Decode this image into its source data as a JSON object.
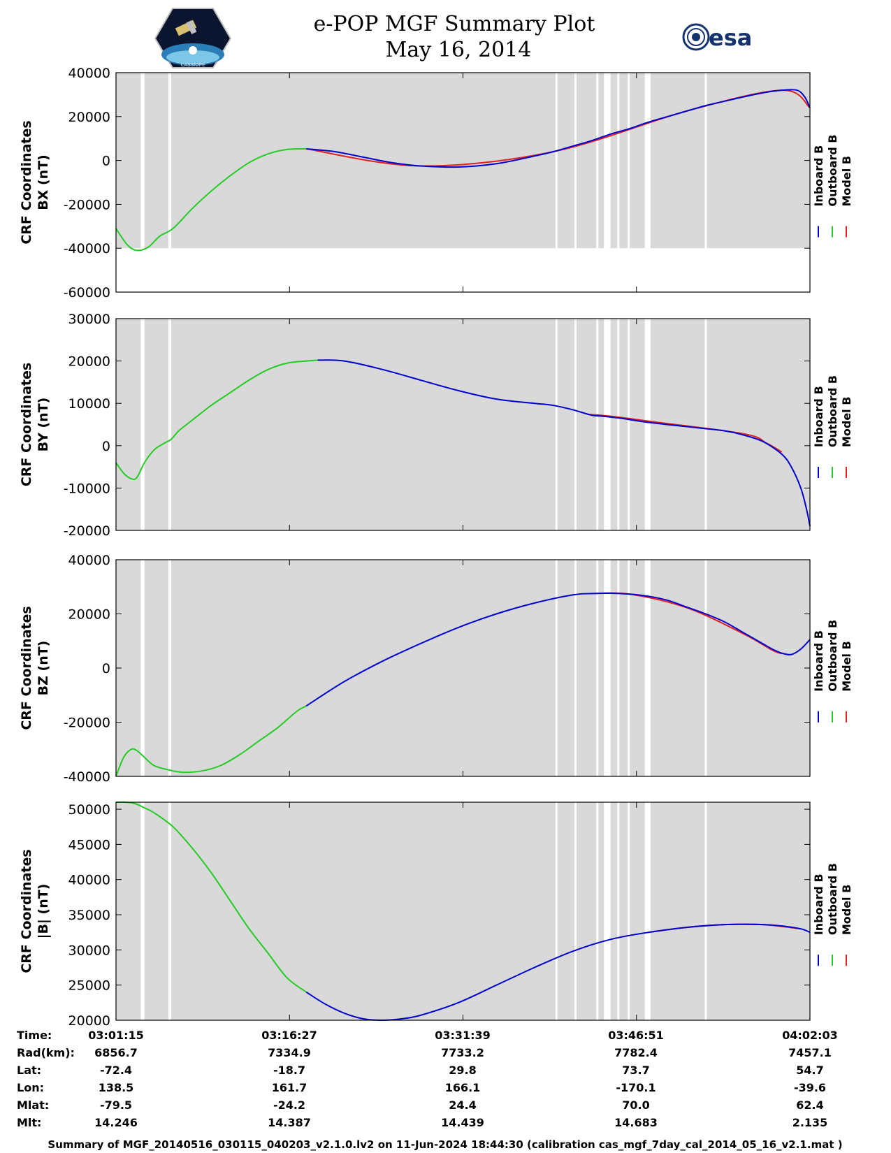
{
  "header": {
    "title": "e-POP MGF Summary Plot",
    "date": "May 16, 2014",
    "left_logo": "cassiope-mission-logo",
    "right_logo": "esa-logo",
    "right_logo_text": "esa"
  },
  "colors": {
    "inboard": "#0000d0",
    "outboard": "#22cc22",
    "model": "#e02020",
    "panel_background": "#d9d9d9",
    "gap": "#ffffff"
  },
  "time_axis": {
    "start_s": 0,
    "end_s": 3648,
    "tick_seconds": [
      0,
      912,
      1824,
      2736,
      3648
    ],
    "gap_intervals_s": [
      [
        130,
        150
      ],
      [
        275,
        290
      ],
      [
        2310,
        2320
      ],
      [
        2410,
        2420
      ],
      [
        2525,
        2530
      ],
      [
        2565,
        2600
      ],
      [
        2635,
        2640
      ],
      [
        2690,
        2700
      ],
      [
        2780,
        2810
      ],
      [
        3095,
        3100
      ]
    ]
  },
  "legend": {
    "labels": [
      "Inboard B",
      "Outboard B",
      "Model B"
    ]
  },
  "chart_data": [
    {
      "type": "line",
      "id": "bx",
      "ylabel_line1": "CRF Coordinates",
      "ylabel_line2": "BX (nT)",
      "ylim": [
        -60000,
        40000
      ],
      "yticks": [
        -60000,
        -40000,
        -20000,
        0,
        20000,
        40000
      ],
      "ytick_labels": [
        "-60000",
        "-40000",
        "-20000",
        "0",
        "20000",
        "40000"
      ],
      "shade_range": [
        -40000,
        40000
      ],
      "series": [
        {
          "name": "Outboard B",
          "x": [
            0,
            60,
            110,
            170,
            230,
            300,
            400,
            500,
            600,
            700,
            800,
            900,
            1000
          ],
          "y": [
            -31000,
            -38500,
            -41000,
            -39500,
            -34500,
            -31000,
            -22000,
            -14000,
            -7000,
            -1000,
            3000,
            5000,
            5300
          ]
        },
        {
          "name": "Inboard B",
          "x": [
            1000,
            1150,
            1300,
            1450,
            1600,
            1800,
            2000,
            2200,
            2300,
            2400,
            2500,
            2600,
            2700,
            2800,
            2900,
            3000,
            3100,
            3200,
            3300,
            3400,
            3500,
            3580,
            3620,
            3648
          ],
          "y": [
            5300,
            4000,
            1500,
            -1000,
            -2500,
            -3000,
            -1500,
            2000,
            4000,
            6500,
            9000,
            12000,
            14500,
            17500,
            20000,
            22500,
            25000,
            27000,
            29000,
            30800,
            32000,
            32000,
            29000,
            24000
          ]
        },
        {
          "name": "Model B",
          "x": [
            1000,
            1600,
            2300,
            3000,
            3500,
            3648
          ],
          "y": [
            5300,
            -2500,
            4000,
            22500,
            32000,
            24000
          ]
        }
      ]
    },
    {
      "type": "line",
      "id": "by",
      "ylabel_line1": "CRF Coordinates",
      "ylabel_line2": "BY (nT)",
      "ylim": [
        -20000,
        30000
      ],
      "yticks": [
        -20000,
        -10000,
        0,
        10000,
        20000,
        30000
      ],
      "ytick_labels": [
        "-20000",
        "-10000",
        "0",
        "10000",
        "20000",
        "30000"
      ],
      "shade_range": [
        -20000,
        30000
      ],
      "series": [
        {
          "name": "Outboard B",
          "x": [
            0,
            40,
            80,
            110,
            150,
            200,
            250,
            290,
            330,
            400,
            500,
            600,
            700,
            800,
            900,
            1000,
            1060
          ],
          "y": [
            -4000,
            -6500,
            -7800,
            -7500,
            -4000,
            -1000,
            500,
            1500,
            3500,
            6000,
            9500,
            12500,
            15500,
            18000,
            19500,
            20000,
            20200
          ]
        },
        {
          "name": "Inboard B",
          "x": [
            1060,
            1200,
            1400,
            1600,
            1800,
            2000,
            2200,
            2300,
            2400,
            2500,
            2550,
            2650,
            2800,
            3000,
            3200,
            3300,
            3400,
            3500,
            3550,
            3600,
            3630,
            3648
          ],
          "y": [
            20200,
            20000,
            18000,
            15500,
            13000,
            11000,
            10000,
            9500,
            8500,
            7200,
            7000,
            6500,
            5500,
            4500,
            3500,
            2500,
            1000,
            -2000,
            -5000,
            -10000,
            -15000,
            -19000
          ]
        },
        {
          "name": "Model B",
          "x": [
            2480,
            2550,
            2650,
            2800,
            3300,
            3420,
            3500
          ],
          "y": [
            7400,
            7200,
            6700,
            5800,
            2800,
            600,
            -1500
          ]
        }
      ]
    },
    {
      "type": "line",
      "id": "bz",
      "ylabel_line1": "CRF Coordinates",
      "ylabel_line2": "BZ (nT)",
      "ylim": [
        -40000,
        40000
      ],
      "yticks": [
        -40000,
        -20000,
        0,
        20000,
        40000
      ],
      "ytick_labels": [
        "-40000",
        "-20000",
        "0",
        "20000",
        "40000"
      ],
      "shade_range": [
        -40000,
        40000
      ],
      "series": [
        {
          "name": "Outboard B",
          "x": [
            0,
            40,
            80,
            110,
            150,
            200,
            270,
            350,
            450,
            550,
            650,
            750,
            850,
            950,
            1000
          ],
          "y": [
            -40000,
            -33000,
            -30000,
            -30500,
            -33000,
            -36000,
            -37500,
            -38500,
            -38000,
            -36000,
            -32000,
            -27000,
            -22000,
            -16000,
            -14000
          ]
        },
        {
          "name": "Inboard B",
          "x": [
            1000,
            1200,
            1400,
            1600,
            1800,
            2000,
            2200,
            2400,
            2500,
            2600,
            2700,
            2800,
            2900,
            3000,
            3100,
            3200,
            3300,
            3400,
            3450,
            3500,
            3550,
            3600,
            3648
          ],
          "y": [
            -14000,
            -5000,
            2500,
            9000,
            15000,
            20000,
            24000,
            27000,
            27500,
            27600,
            27300,
            26500,
            25000,
            22500,
            20000,
            17000,
            13000,
            9000,
            7000,
            5500,
            5000,
            7000,
            10500
          ]
        },
        {
          "name": "Model B",
          "x": [
            2500,
            2700,
            3000,
            3300,
            3450,
            3500
          ],
          "y": [
            27500,
            27300,
            22300,
            12600,
            6600,
            5300
          ]
        }
      ]
    },
    {
      "type": "line",
      "id": "btot",
      "ylabel_line1": "CRF Coordinates",
      "ylabel_line2": "|B| (nT)",
      "ylim": [
        20000,
        51000
      ],
      "yticks": [
        20000,
        25000,
        30000,
        35000,
        40000,
        45000,
        50000
      ],
      "ytick_labels": [
        "20000",
        "25000",
        "30000",
        "35000",
        "40000",
        "45000",
        "50000"
      ],
      "shade_range": [
        20000,
        51000
      ],
      "series": [
        {
          "name": "Outboard B",
          "x": [
            0,
            50,
            100,
            150,
            200,
            300,
            400,
            500,
            600,
            700,
            800,
            900,
            1000
          ],
          "y": [
            51000,
            51000,
            50800,
            50200,
            49500,
            47500,
            44500,
            41000,
            37000,
            33000,
            29500,
            26000,
            24000
          ]
        },
        {
          "name": "Inboard B",
          "x": [
            1000,
            1100,
            1200,
            1300,
            1400,
            1500,
            1600,
            1800,
            2000,
            2200,
            2400,
            2600,
            2800,
            3000,
            3200,
            3400,
            3500,
            3600,
            3648
          ],
          "y": [
            24000,
            22300,
            21000,
            20200,
            20000,
            20200,
            20700,
            22500,
            25000,
            27500,
            29800,
            31500,
            32500,
            33200,
            33600,
            33600,
            33400,
            33000,
            32500
          ]
        },
        {
          "name": "Model B",
          "x": [
            2800,
            3000,
            3200,
            3400,
            3600
          ],
          "y": [
            32500,
            33200,
            33600,
            33600,
            33000
          ]
        }
      ]
    }
  ],
  "ephemeris": {
    "row_labels": [
      "Time:",
      "Rad(km):",
      "Lat:",
      "Lon:",
      "Mlat:",
      "Mlt:"
    ],
    "columns": [
      [
        "03:01:15",
        "6856.7",
        "-72.4",
        "138.5",
        "-79.5",
        "14.246"
      ],
      [
        "03:16:27",
        "7334.9",
        "-18.7",
        "161.7",
        "-24.2",
        "14.387"
      ],
      [
        "03:31:39",
        "7733.2",
        "29.8",
        "166.1",
        "24.4",
        "14.439"
      ],
      [
        "03:46:51",
        "7782.4",
        "73.7",
        "-170.1",
        "70.0",
        "14.683"
      ],
      [
        "04:02:03",
        "7457.1",
        "54.7",
        "-39.6",
        "62.4",
        "2.135"
      ]
    ]
  },
  "footer": "Summary of MGF_20140516_030115_040203_v2.1.0.lv2 on 11-Jun-2024 18:44:30 (calibration cas_mgf_7day_cal_2014_05_16_v2.1.mat )"
}
